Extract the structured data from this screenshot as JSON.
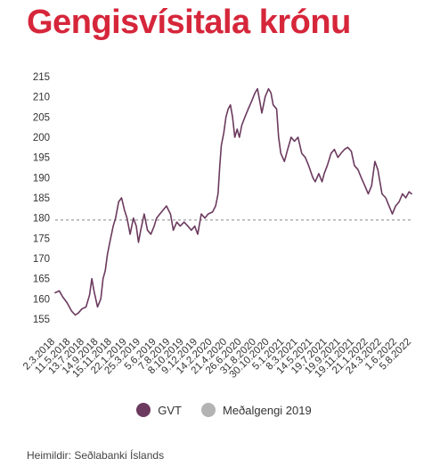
{
  "title": "Gengisvísitala krónu",
  "source": "Heimildir: Seðlabanki Íslands",
  "colors": {
    "title": "#d6263a",
    "series": "#6b3a5e",
    "average": "#b3b3b3",
    "average_line": "#888888"
  },
  "chart_data": {
    "type": "line",
    "title": "Gengisvísitala krónu",
    "xlabel": "",
    "ylabel": "",
    "ylim": [
      155,
      215
    ],
    "yticks": [
      155,
      160,
      165,
      170,
      175,
      180,
      185,
      190,
      195,
      200,
      205,
      210,
      215
    ],
    "xrange": [
      "2018-03-02",
      "2022-08-05"
    ],
    "x_tick_labels": [
      {
        "label": "2.3.2018",
        "date": "2018-03-02"
      },
      {
        "label": "11.5.2018",
        "date": "2018-05-11"
      },
      {
        "label": "13.7.2018",
        "date": "2018-07-13"
      },
      {
        "label": "14.9.2018",
        "date": "2018-09-14"
      },
      {
        "label": "15.11.2018",
        "date": "2018-11-15"
      },
      {
        "label": "22.1.2019",
        "date": "2019-01-22"
      },
      {
        "label": "25.3.2019",
        "date": "2019-03-25"
      },
      {
        "label": "5.6.2019",
        "date": "2019-06-05"
      },
      {
        "label": "7.8.2019",
        "date": "2019-08-07"
      },
      {
        "label": "8.10.2019",
        "date": "2019-10-08"
      },
      {
        "label": "9.12.2019",
        "date": "2019-12-09"
      },
      {
        "label": "14.2.2020",
        "date": "2020-02-14"
      },
      {
        "label": "21.4.2020",
        "date": "2020-04-21"
      },
      {
        "label": "26.6.2020",
        "date": "2020-06-26"
      },
      {
        "label": "31.8.2020",
        "date": "2020-08-31"
      },
      {
        "label": "30.10.2020",
        "date": "2020-10-30"
      },
      {
        "label": "5.1.2021",
        "date": "2021-01-05"
      },
      {
        "label": "8.3.2021",
        "date": "2021-03-08"
      },
      {
        "label": "14.5.2021",
        "date": "2021-05-14"
      },
      {
        "label": "19.7.2021",
        "date": "2021-07-19"
      },
      {
        "label": "19.9.2021",
        "date": "2021-09-19"
      },
      {
        "label": "19.11.2021",
        "date": "2021-11-19"
      },
      {
        "label": "21.1.2022",
        "date": "2022-01-21"
      },
      {
        "label": "24.3.2022",
        "date": "2022-03-24"
      },
      {
        "label": "1.6.2022",
        "date": "2022-06-01"
      },
      {
        "label": "5.8.2022",
        "date": "2022-08-05"
      }
    ],
    "series": [
      {
        "name": "GVT",
        "points": [
          [
            "2018-03-02",
            161.5
          ],
          [
            "2018-03-20",
            162.0
          ],
          [
            "2018-04-05",
            160.5
          ],
          [
            "2018-04-25",
            159.0
          ],
          [
            "2018-05-15",
            157.0
          ],
          [
            "2018-06-01",
            156.0
          ],
          [
            "2018-06-15",
            156.5
          ],
          [
            "2018-07-01",
            157.5
          ],
          [
            "2018-07-20",
            158.0
          ],
          [
            "2018-08-05",
            161.0
          ],
          [
            "2018-08-15",
            165.0
          ],
          [
            "2018-08-25",
            162.0
          ],
          [
            "2018-09-10",
            158.0
          ],
          [
            "2018-09-25",
            160.0
          ],
          [
            "2018-10-05",
            165.0
          ],
          [
            "2018-10-15",
            167.0
          ],
          [
            "2018-10-25",
            171.0
          ],
          [
            "2018-11-05",
            174.0
          ],
          [
            "2018-11-20",
            178.0
          ],
          [
            "2018-12-01",
            180.0
          ],
          [
            "2018-12-15",
            184.0
          ],
          [
            "2018-12-28",
            185.0
          ],
          [
            "2019-01-10",
            182.0
          ],
          [
            "2019-01-22",
            180.0
          ],
          [
            "2019-02-05",
            176.0
          ],
          [
            "2019-02-20",
            180.0
          ],
          [
            "2019-03-05",
            178.0
          ],
          [
            "2019-03-15",
            174.0
          ],
          [
            "2019-03-25",
            177.0
          ],
          [
            "2019-04-10",
            181.0
          ],
          [
            "2019-04-25",
            177.0
          ],
          [
            "2019-05-10",
            176.0
          ],
          [
            "2019-05-25",
            178.0
          ],
          [
            "2019-06-05",
            180.0
          ],
          [
            "2019-06-20",
            181.0
          ],
          [
            "2019-07-05",
            182.0
          ],
          [
            "2019-07-20",
            183.0
          ],
          [
            "2019-08-07",
            181.0
          ],
          [
            "2019-08-20",
            177.0
          ],
          [
            "2019-09-05",
            179.0
          ],
          [
            "2019-09-20",
            178.0
          ],
          [
            "2019-10-08",
            179.0
          ],
          [
            "2019-10-25",
            178.0
          ],
          [
            "2019-11-10",
            177.0
          ],
          [
            "2019-11-25",
            178.0
          ],
          [
            "2019-12-09",
            176.0
          ],
          [
            "2019-12-25",
            181.0
          ],
          [
            "2020-01-10",
            180.0
          ],
          [
            "2020-01-25",
            181.0
          ],
          [
            "2020-02-14",
            181.5
          ],
          [
            "2020-02-28",
            183.0
          ],
          [
            "2020-03-10",
            186.0
          ],
          [
            "2020-03-18",
            193.0
          ],
          [
            "2020-03-25",
            198.0
          ],
          [
            "2020-04-05",
            201.0
          ],
          [
            "2020-04-15",
            205.0
          ],
          [
            "2020-04-25",
            207.0
          ],
          [
            "2020-05-05",
            208.0
          ],
          [
            "2020-05-15",
            205.0
          ],
          [
            "2020-05-25",
            200.0
          ],
          [
            "2020-06-05",
            202.0
          ],
          [
            "2020-06-15",
            200.0
          ],
          [
            "2020-06-26",
            203.0
          ],
          [
            "2020-07-10",
            205.0
          ],
          [
            "2020-07-25",
            207.0
          ],
          [
            "2020-08-10",
            209.0
          ],
          [
            "2020-08-25",
            211.0
          ],
          [
            "2020-09-05",
            212.0
          ],
          [
            "2020-09-15",
            209.0
          ],
          [
            "2020-09-25",
            206.0
          ],
          [
            "2020-10-10",
            210.0
          ],
          [
            "2020-10-25",
            212.0
          ],
          [
            "2020-11-05",
            211.0
          ],
          [
            "2020-11-15",
            208.0
          ],
          [
            "2020-12-01",
            207.0
          ],
          [
            "2020-12-10",
            200.0
          ],
          [
            "2020-12-20",
            196.0
          ],
          [
            "2021-01-05",
            194.0
          ],
          [
            "2021-01-20",
            197.0
          ],
          [
            "2021-02-05",
            200.0
          ],
          [
            "2021-02-20",
            199.0
          ],
          [
            "2021-03-08",
            200.0
          ],
          [
            "2021-03-25",
            196.0
          ],
          [
            "2021-04-10",
            195.0
          ],
          [
            "2021-04-25",
            193.0
          ],
          [
            "2021-05-14",
            190.0
          ],
          [
            "2021-05-25",
            189.0
          ],
          [
            "2021-06-10",
            191.0
          ],
          [
            "2021-06-25",
            189.0
          ],
          [
            "2021-07-05",
            191.0
          ],
          [
            "2021-07-19",
            193.0
          ],
          [
            "2021-08-05",
            196.0
          ],
          [
            "2021-08-20",
            197.0
          ],
          [
            "2021-09-05",
            195.0
          ],
          [
            "2021-09-19",
            196.0
          ],
          [
            "2021-10-05",
            197.0
          ],
          [
            "2021-10-20",
            197.5
          ],
          [
            "2021-11-05",
            196.5
          ],
          [
            "2021-11-19",
            193.0
          ],
          [
            "2021-12-05",
            192.0
          ],
          [
            "2021-12-20",
            190.0
          ],
          [
            "2022-01-05",
            188.0
          ],
          [
            "2022-01-21",
            186.0
          ],
          [
            "2022-02-05",
            188.0
          ],
          [
            "2022-02-20",
            194.0
          ],
          [
            "2022-03-05",
            192.0
          ],
          [
            "2022-03-24",
            186.0
          ],
          [
            "2022-04-10",
            185.0
          ],
          [
            "2022-04-25",
            183.0
          ],
          [
            "2022-05-10",
            181.0
          ],
          [
            "2022-05-25",
            183.0
          ],
          [
            "2022-06-10",
            184.0
          ],
          [
            "2022-06-25",
            186.0
          ],
          [
            "2022-07-10",
            185.0
          ],
          [
            "2022-07-25",
            186.5
          ],
          [
            "2022-08-05",
            186.0
          ]
        ]
      },
      {
        "name": "Meðalgengi 2019",
        "constant": 179.5
      }
    ],
    "legend": [
      "GVT",
      "Meðalgengi 2019"
    ],
    "legend_position": "bottom-center",
    "grid": false
  }
}
